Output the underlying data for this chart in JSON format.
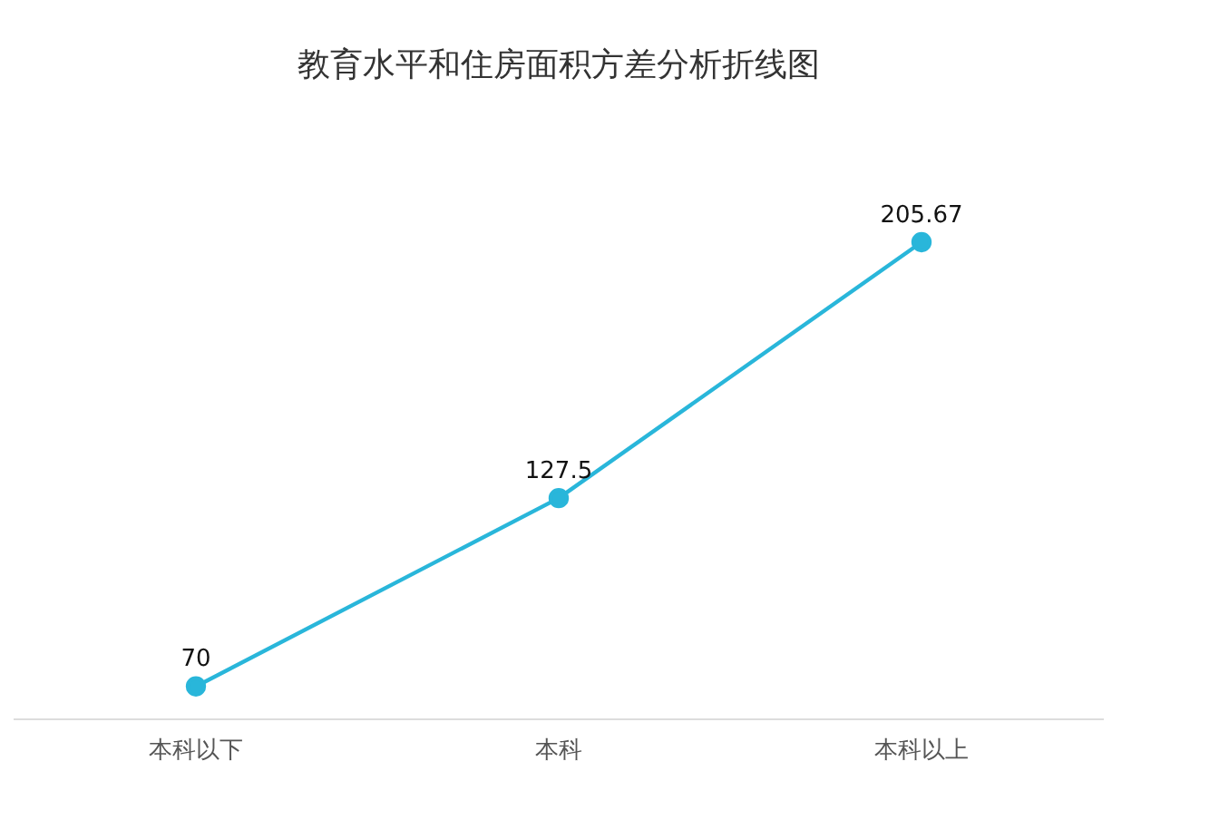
{
  "chart_data": {
    "type": "line",
    "title": "教育水平和住房面积方差分析折线图",
    "categories": [
      "本科以下",
      "本科",
      "本科以上"
    ],
    "series": [
      {
        "color": "#29b6da",
        "values": [
          70,
          127.5,
          205.67
        ]
      }
    ],
    "data_labels": true,
    "marker": "circle",
    "line_style": "solid",
    "grid": false,
    "legend": false
  }
}
